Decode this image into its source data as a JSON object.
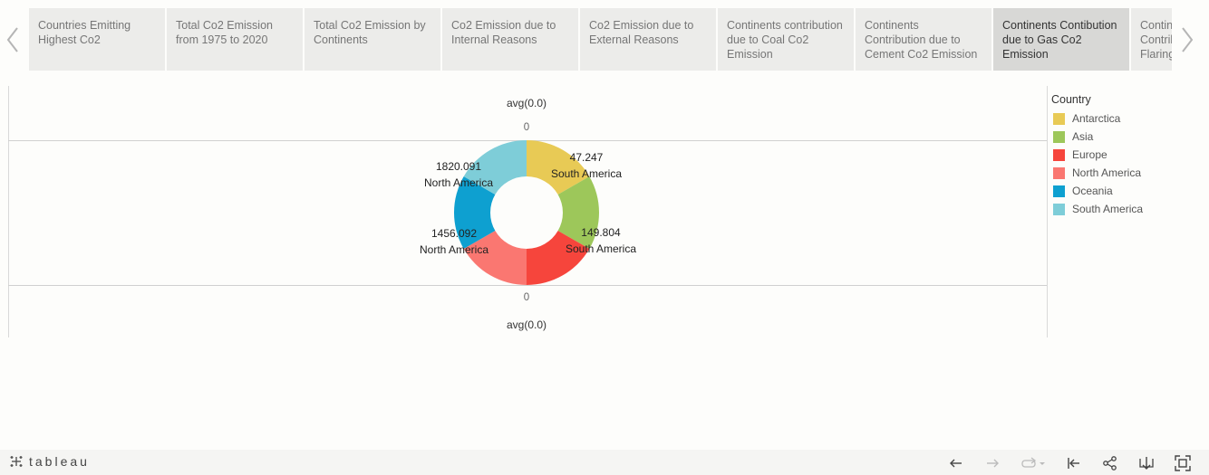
{
  "app": {
    "brand": "tableau"
  },
  "story": {
    "tabs": [
      {
        "label": "Countries Emitting Highest Co2",
        "active": false
      },
      {
        "label": "Total Co2 Emission from 1975 to 2020",
        "active": false
      },
      {
        "label": "Total Co2 Emission by Continents",
        "active": false
      },
      {
        "label": "Co2 Emission due to Internal Reasons",
        "active": false
      },
      {
        "label": "Co2 Emission due to External Reasons",
        "active": false
      },
      {
        "label": "Continents contribution due to Coal Co2 Emission",
        "active": false
      },
      {
        "label": "Continents Contribution due to Cement Co2 Emission",
        "active": false
      },
      {
        "label": "Continents Contibution due to Gas Co2 Emission",
        "active": true
      },
      {
        "label": "Continents Contribution due to Flaring",
        "active": false
      }
    ],
    "prev_icon": "chevron-left-icon",
    "next_icon": "chevron-right-icon"
  },
  "chart": {
    "top_axis_title": "avg(0.0)",
    "top_tick": "0",
    "bottom_tick": "0",
    "bottom_axis_title": "avg(0.0)"
  },
  "chart_data": {
    "type": "pie",
    "title": "",
    "donut": true,
    "legend_title": "Country",
    "legend_position": "right",
    "categories": [
      "Antarctica",
      "Asia",
      "Europe",
      "North America",
      "Oceania",
      "South America"
    ],
    "colors": [
      "#e8ca55",
      "#9dc75a",
      "#f6453c",
      "#fa7771",
      "#0ea0d0",
      "#7ecdd8"
    ],
    "values": [
      1,
      1,
      1,
      1,
      1,
      1
    ],
    "data_labels": [
      {
        "value": "47.247",
        "name": "South America"
      },
      {
        "value": "149.804",
        "name": "South America"
      },
      {
        "value": "1456.092",
        "name": "North America"
      },
      {
        "value": "1820.091",
        "name": "North America"
      }
    ]
  },
  "toolbar": {
    "buttons": [
      "undo-icon",
      "redo-icon",
      "revert-icon",
      "reset-icon",
      "share-icon",
      "download-icon",
      "fullscreen-icon"
    ]
  }
}
